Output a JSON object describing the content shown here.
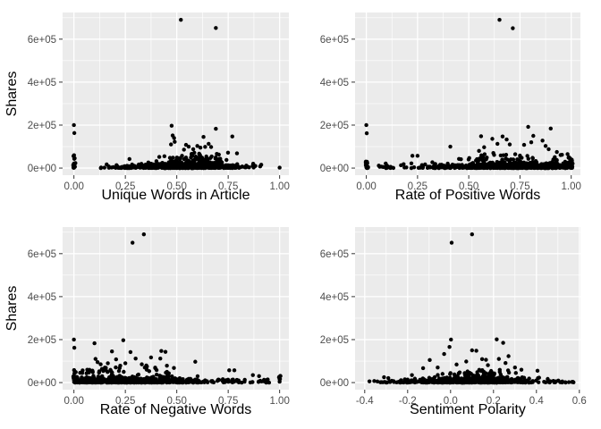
{
  "style": {
    "background": "#FFFFFF",
    "panel_bg": "#EBEBEB",
    "grid_color": "#FFFFFF",
    "point_color": "#000000",
    "tick_text_color": "#4D4D4D",
    "axis_title_color": "#000000",
    "tick_mark_color": "#333333"
  },
  "chart_data": [
    {
      "type": "scatter",
      "xlabel": "Unique Words in Article",
      "ylabel": "Shares",
      "x_domain": [
        -0.055,
        1.045
      ],
      "y_domain": [
        -33000,
        724000
      ],
      "x_tick_values": [
        0,
        0.25,
        0.5,
        0.75,
        1.0
      ],
      "x_tick_labels": [
        "0.00",
        "0.25",
        "0.50",
        "0.75",
        "1.00"
      ],
      "x_minor": [
        0.125,
        0.375,
        0.625,
        0.875
      ],
      "y_tick_values": [
        0,
        200000,
        400000,
        600000
      ],
      "y_tick_labels": [
        "0e+00",
        "2e+05",
        "4e+05",
        "6e+05"
      ],
      "y_minor": [
        100000,
        300000,
        500000,
        700000
      ],
      "grid": true,
      "seed": 101,
      "outliers": [
        [
          0.52,
          690000
        ],
        [
          0.69,
          652000
        ]
      ],
      "points": [
        [
          0.0,
          200000
        ],
        [
          0.002,
          163000
        ],
        [
          0.475,
          197000
        ],
        [
          0.48,
          152000
        ],
        [
          0.487,
          140000
        ],
        [
          0.49,
          122000
        ],
        [
          0.472,
          110000
        ],
        [
          0.545,
          108000
        ],
        [
          0.558,
          100000
        ],
        [
          0.6,
          103000
        ],
        [
          0.615,
          95000
        ],
        [
          0.63,
          145000
        ],
        [
          0.638,
          99000
        ],
        [
          0.655,
          113000
        ],
        [
          0.667,
          98000
        ],
        [
          0.69,
          183000
        ],
        [
          0.77,
          147000
        ],
        [
          0.58,
          88000
        ],
        [
          0.535,
          86000
        ],
        [
          0.27,
          42000
        ],
        [
          0.415,
          52000
        ],
        [
          0.44,
          55000
        ],
        [
          1.0,
          2000
        ]
      ],
      "clusters": [
        {
          "n": 620,
          "x": {
            "dist": "normal",
            "mu": 0.565,
            "sd": 0.145,
            "min": 0.12,
            "max": 0.93
          },
          "y": {
            "dist": "exp",
            "scale": 8000,
            "max": 28000
          }
        },
        {
          "n": 150,
          "x": {
            "dist": "normal",
            "mu": 0.57,
            "sd": 0.085,
            "min": 0.3,
            "max": 0.82
          },
          "y": {
            "dist": "exp",
            "scale": 17000,
            "max": 58000
          }
        },
        {
          "n": 26,
          "x": {
            "dist": "normal",
            "mu": 0.58,
            "sd": 0.09,
            "min": 0.35,
            "max": 0.8
          },
          "y": {
            "dist": "uniform",
            "min": 40000,
            "max": 72000
          }
        },
        {
          "n": 24,
          "x": {
            "dist": "normal",
            "mu": 0.002,
            "sd": 0.004,
            "min": -0.006,
            "max": 0.012
          },
          "y": {
            "dist": "exp",
            "scale": 22000,
            "max": 68000
          }
        },
        {
          "n": 18,
          "x": {
            "dist": "uniform",
            "min": 0.13,
            "max": 0.32
          },
          "y": {
            "dist": "exp",
            "scale": 4500,
            "max": 14000
          }
        }
      ]
    },
    {
      "type": "scatter",
      "xlabel": "Rate of Positive Words",
      "ylabel": "",
      "x_domain": [
        -0.055,
        1.045
      ],
      "y_domain": [
        -33000,
        724000
      ],
      "x_tick_values": [
        0,
        0.25,
        0.5,
        0.75,
        1.0
      ],
      "x_tick_labels": [
        "0.00",
        "0.25",
        "0.50",
        "0.75",
        "1.00"
      ],
      "x_minor": [
        0.125,
        0.375,
        0.625,
        0.875
      ],
      "y_tick_values": [
        0,
        200000,
        400000,
        600000
      ],
      "y_tick_labels": [
        "0e+00",
        "2e+05",
        "4e+05",
        "6e+05"
      ],
      "y_minor": [
        100000,
        300000,
        500000,
        700000
      ],
      "grid": true,
      "seed": 202,
      "outliers": [
        [
          0.65,
          690000
        ],
        [
          0.715,
          651000
        ]
      ],
      "points": [
        [
          0.0,
          200000
        ],
        [
          0.002,
          162000
        ],
        [
          0.79,
          192000
        ],
        [
          0.9,
          184000
        ],
        [
          0.56,
          148000
        ],
        [
          0.615,
          136000
        ],
        [
          0.665,
          147000
        ],
        [
          0.815,
          150000
        ],
        [
          0.685,
          133000
        ],
        [
          0.86,
          128000
        ],
        [
          0.805,
          120000
        ],
        [
          0.64,
          113000
        ],
        [
          0.7,
          110000
        ],
        [
          0.77,
          108000
        ],
        [
          0.875,
          103000
        ],
        [
          0.41,
          100000
        ],
        [
          0.575,
          97000
        ],
        [
          0.225,
          57000
        ],
        [
          0.25,
          57000
        ],
        [
          0.89,
          88000
        ],
        [
          0.93,
          75000
        ],
        [
          0.955,
          62000
        ],
        [
          0.995,
          45000
        ],
        [
          0.55,
          80000
        ],
        [
          0.62,
          70000
        ]
      ],
      "clusters": [
        {
          "n": 640,
          "x": {
            "dist": "normal",
            "mu": 0.73,
            "sd": 0.23,
            "min": 0.05,
            "max": 1.005
          },
          "y": {
            "dist": "exp",
            "scale": 8500,
            "max": 30000
          }
        },
        {
          "n": 140,
          "x": {
            "dist": "normal",
            "mu": 0.73,
            "sd": 0.16,
            "min": 0.35,
            "max": 1.0
          },
          "y": {
            "dist": "exp",
            "scale": 16000,
            "max": 52000
          }
        },
        {
          "n": 30,
          "x": {
            "dist": "uniform",
            "min": 0.5,
            "max": 0.99
          },
          "y": {
            "dist": "uniform",
            "min": 35000,
            "max": 65000
          }
        },
        {
          "n": 16,
          "x": {
            "dist": "normal",
            "mu": 0.002,
            "sd": 0.004,
            "min": -0.006,
            "max": 0.012
          },
          "y": {
            "dist": "exp",
            "scale": 16000,
            "max": 52000
          }
        },
        {
          "n": 13,
          "x": {
            "dist": "normal",
            "mu": 1.0,
            "sd": 0.004,
            "min": 0.992,
            "max": 1.008
          },
          "y": {
            "dist": "uniform",
            "min": 1000,
            "max": 45000
          }
        },
        {
          "n": 22,
          "x": {
            "dist": "uniform",
            "min": 0.06,
            "max": 0.32
          },
          "y": {
            "dist": "exp",
            "scale": 4000,
            "max": 12000
          }
        }
      ]
    },
    {
      "type": "scatter",
      "xlabel": "Rate of Negative Words",
      "ylabel": "Shares",
      "x_domain": [
        -0.055,
        1.045
      ],
      "y_domain": [
        -33000,
        724000
      ],
      "x_tick_values": [
        0,
        0.25,
        0.5,
        0.75,
        1.0
      ],
      "x_tick_labels": [
        "0.00",
        "0.25",
        "0.50",
        "0.75",
        "1.00"
      ],
      "x_minor": [
        0.125,
        0.375,
        0.625,
        0.875
      ],
      "y_tick_values": [
        0,
        200000,
        400000,
        600000
      ],
      "y_tick_labels": [
        "0e+00",
        "2e+05",
        "4e+05",
        "6e+05"
      ],
      "y_minor": [
        100000,
        300000,
        500000,
        700000
      ],
      "grid": true,
      "seed": 303,
      "outliers": [
        [
          0.34,
          690000
        ],
        [
          0.285,
          651000
        ]
      ],
      "points": [
        [
          0.0,
          200000
        ],
        [
          0.002,
          162000
        ],
        [
          0.24,
          197000
        ],
        [
          0.1,
          183000
        ],
        [
          0.185,
          145000
        ],
        [
          0.275,
          142000
        ],
        [
          0.425,
          147000
        ],
        [
          0.445,
          143000
        ],
        [
          0.375,
          117000
        ],
        [
          0.3,
          112000
        ],
        [
          0.205,
          108000
        ],
        [
          0.105,
          110000
        ],
        [
          0.115,
          95000
        ],
        [
          0.165,
          90000
        ],
        [
          0.42,
          112000
        ],
        [
          0.59,
          97000
        ],
        [
          0.755,
          57000
        ],
        [
          0.78,
          57000
        ],
        [
          0.13,
          85000
        ],
        [
          0.33,
          85000
        ],
        [
          0.25,
          90000
        ],
        [
          0.355,
          75000
        ],
        [
          0.065,
          60000
        ],
        [
          0.87,
          35000
        ],
        [
          0.9,
          30000
        ]
      ],
      "clusters": [
        {
          "n": 640,
          "x": {
            "dist": "normal",
            "mu": 0.225,
            "sd": 0.185,
            "min": 0.0,
            "max": 0.96
          },
          "y": {
            "dist": "exp",
            "scale": 8500,
            "max": 30000
          }
        },
        {
          "n": 140,
          "x": {
            "dist": "normal",
            "mu": 0.23,
            "sd": 0.13,
            "min": 0.02,
            "max": 0.62
          },
          "y": {
            "dist": "exp",
            "scale": 15000,
            "max": 52000
          }
        },
        {
          "n": 34,
          "x": {
            "dist": "uniform",
            "min": 0.03,
            "max": 0.5
          },
          "y": {
            "dist": "uniform",
            "min": 35000,
            "max": 80000
          }
        },
        {
          "n": 26,
          "x": {
            "dist": "normal",
            "mu": 0.004,
            "sd": 0.005,
            "min": -0.006,
            "max": 0.016
          },
          "y": {
            "dist": "exp",
            "scale": 20000,
            "max": 62000
          }
        },
        {
          "n": 7,
          "x": {
            "dist": "normal",
            "mu": 1.0,
            "sd": 0.003,
            "min": 0.994,
            "max": 1.006
          },
          "y": {
            "dist": "uniform",
            "min": 1000,
            "max": 32000
          }
        },
        {
          "n": 50,
          "x": {
            "dist": "uniform",
            "min": 0.55,
            "max": 0.95
          },
          "y": {
            "dist": "exp",
            "scale": 5000,
            "max": 18000
          }
        }
      ]
    },
    {
      "type": "scatter",
      "xlabel": "Sentiment Polarity",
      "ylabel": "",
      "x_domain": [
        -0.445,
        0.605
      ],
      "y_domain": [
        -33000,
        724000
      ],
      "x_tick_values": [
        -0.4,
        -0.2,
        0.0,
        0.2,
        0.4,
        0.6
      ],
      "x_tick_labels": [
        "-0.4",
        "-0.2",
        "0.0",
        "0.2",
        "0.4",
        "0.6"
      ],
      "x_minor": [
        -0.3,
        -0.1,
        0.1,
        0.3,
        0.5
      ],
      "y_tick_values": [
        0,
        200000,
        400000,
        600000
      ],
      "y_tick_labels": [
        "0e+00",
        "2e+05",
        "4e+05",
        "6e+05"
      ],
      "y_minor": [
        100000,
        300000,
        500000,
        700000
      ],
      "grid": true,
      "seed": 404,
      "outliers": [
        [
          0.1,
          690000
        ],
        [
          0.005,
          651000
        ]
      ],
      "points": [
        [
          0.002,
          200000
        ],
        [
          0.215,
          201000
        ],
        [
          0.245,
          185000
        ],
        [
          -0.005,
          166000
        ],
        [
          0.1,
          150000
        ],
        [
          0.12,
          148000
        ],
        [
          -0.03,
          133000
        ],
        [
          0.27,
          123000
        ],
        [
          0.225,
          110000
        ],
        [
          0.165,
          106000
        ],
        [
          0.147,
          109000
        ],
        [
          -0.097,
          105000
        ],
        [
          0.073,
          98000
        ],
        [
          0.028,
          84000
        ],
        [
          0.256,
          91000
        ],
        [
          0.174,
          81000
        ],
        [
          -0.128,
          67000
        ],
        [
          0.405,
          55000
        ],
        [
          -0.31,
          25000
        ],
        [
          -0.29,
          21000
        ],
        [
          0.3,
          70000
        ],
        [
          0.33,
          60000
        ],
        [
          -0.06,
          70000
        ],
        [
          -0.18,
          35000
        ]
      ],
      "clusters": [
        {
          "n": 620,
          "x": {
            "dist": "normal",
            "mu": 0.105,
            "sd": 0.135,
            "min": -0.385,
            "max": 0.585
          },
          "y": {
            "dist": "exp",
            "scale": 7500,
            "max": 26000
          }
        },
        {
          "n": 140,
          "x": {
            "dist": "normal",
            "mu": 0.125,
            "sd": 0.1,
            "min": -0.12,
            "max": 0.4
          },
          "y": {
            "dist": "exp",
            "scale": 15000,
            "max": 52000
          }
        },
        {
          "n": 26,
          "x": {
            "dist": "normal",
            "mu": 0.14,
            "sd": 0.1,
            "min": -0.05,
            "max": 0.36
          },
          "y": {
            "dist": "uniform",
            "min": 35000,
            "max": 62000
          }
        },
        {
          "n": 26,
          "x": {
            "dist": "uniform",
            "min": -0.385,
            "max": -0.16
          },
          "y": {
            "dist": "exp",
            "scale": 4000,
            "max": 12000
          }
        },
        {
          "n": 22,
          "x": {
            "dist": "uniform",
            "min": 0.4,
            "max": 0.585
          },
          "y": {
            "dist": "exp",
            "scale": 3500,
            "max": 10000
          }
        }
      ]
    }
  ]
}
